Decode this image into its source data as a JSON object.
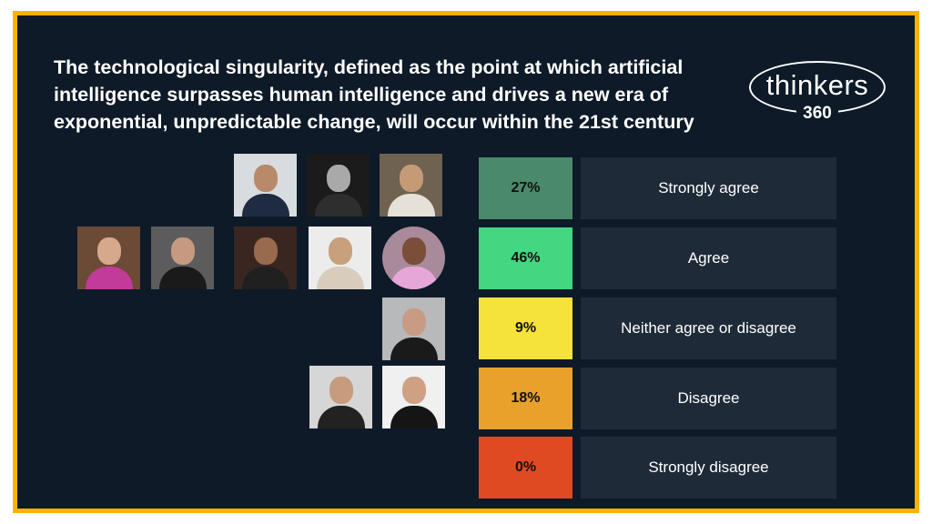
{
  "question": "The technological singularity, defined as the point at which artificial intelligence surpasses human intelligence and drives a new era of exponential, unpredictable change, will occur within the 21st century",
  "logo": {
    "word": "thinkers",
    "number": "360"
  },
  "results": [
    {
      "percent": "27%",
      "label": "Strongly agree",
      "color": "#4a8a6a",
      "respondents": 3
    },
    {
      "percent": "46%",
      "label": "Agree",
      "color": "#44d680",
      "respondents": 5
    },
    {
      "percent": "9%",
      "label": "Neither agree or disagree",
      "color": "#f5e23a",
      "respondents": 1
    },
    {
      "percent": "18%",
      "label": "Disagree",
      "color": "#e9a12c",
      "respondents": 2
    },
    {
      "percent": "0%",
      "label": "Strongly disagree",
      "color": "#e04a22",
      "respondents": 0
    }
  ],
  "colors": {
    "frame": "#f5b400",
    "background": "#0e1a28",
    "option_box": "#1f2a38"
  }
}
